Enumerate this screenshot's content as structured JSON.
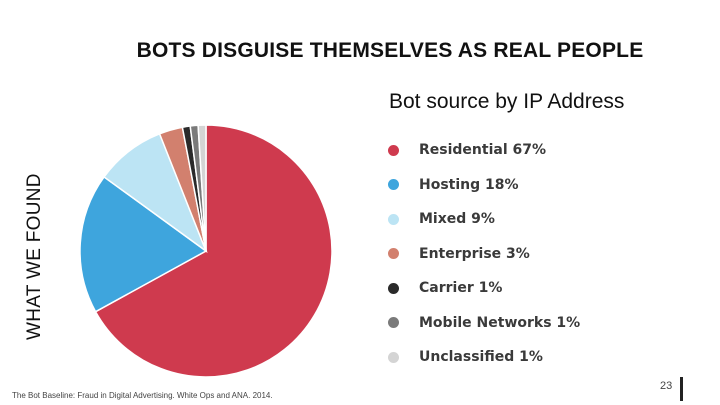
{
  "slide": {
    "title": "BOTS DISGUISE THEMSELVES AS REAL PEOPLE",
    "side_label": "WHAT WE FOUND",
    "source": "The Bot Baseline: Fraud in Digital Advertising. White Ops and ANA. 2014.",
    "page_number": "23"
  },
  "chart_data": {
    "type": "pie",
    "title": "Bot source by IP Address",
    "legend_position": "right",
    "slices": [
      {
        "label": "Residential 67%",
        "value": 67,
        "color": "#cf3a4e"
      },
      {
        "label": "Hosting 18%",
        "value": 18,
        "color": "#3ea5dd"
      },
      {
        "label": "Mixed 9%",
        "value": 9,
        "color": "#bce4f4"
      },
      {
        "label": "Enterprise 3%",
        "value": 3,
        "color": "#d2806e"
      },
      {
        "label": "Carrier 1%",
        "value": 1,
        "color": "#2a2a2a"
      },
      {
        "label": "Mobile Networks 1%",
        "value": 1,
        "color": "#7a7a7a"
      },
      {
        "label": "Unclassified 1%",
        "value": 1,
        "color": "#d4d4d4"
      }
    ]
  }
}
